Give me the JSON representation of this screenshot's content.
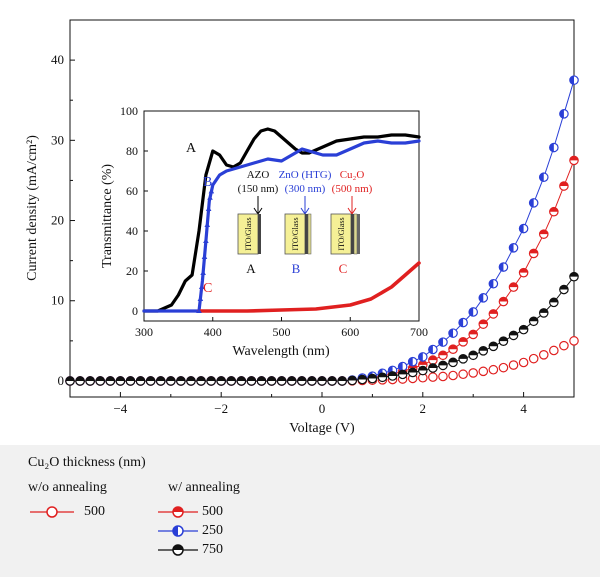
{
  "chart_data": [
    {
      "type": "scatter",
      "xlabel": "Voltage (V)",
      "ylabel": "Current density (mA/cm²)",
      "xlim": [
        -5,
        5
      ],
      "ylim": [
        -2,
        45
      ],
      "xticks": [
        "−4",
        "−2",
        "0",
        "2",
        "4"
      ],
      "yticks": [
        "0",
        "10",
        "20",
        "30",
        "40"
      ],
      "series": [
        {
          "name": "500",
          "group": "w/o annealing",
          "marker": "open-circle",
          "color": "#e02020",
          "x": [
            0.5,
            1.0,
            1.5,
            2.0,
            2.5,
            3.0,
            3.5,
            4.0,
            4.5,
            5.0
          ],
          "y": [
            0.0,
            0.1,
            0.2,
            0.4,
            0.6,
            1.0,
            1.5,
            2.3,
            3.5,
            5.0
          ]
        },
        {
          "name": "500",
          "group": "w/ annealing",
          "marker": "half-filled-circle",
          "color": "#e02020",
          "x": [
            0.5,
            1.0,
            1.5,
            2.0,
            2.5,
            3.0,
            3.5,
            4.0,
            4.5,
            5.0
          ],
          "y": [
            0.0,
            0.4,
            1.0,
            2.0,
            3.5,
            5.8,
            9.0,
            13.5,
            19.5,
            27.5
          ]
        },
        {
          "name": "250",
          "group": "w/ annealing",
          "marker": "half-filled-circle",
          "color": "#2a3fd6",
          "x": [
            0.5,
            1.0,
            1.5,
            2.0,
            2.5,
            3.0,
            3.5,
            4.0,
            4.5,
            5.0
          ],
          "y": [
            0.0,
            0.6,
            1.5,
            3.0,
            5.3,
            8.6,
            13.0,
            19.0,
            27.0,
            37.5
          ]
        },
        {
          "name": "750",
          "group": "w/ annealing",
          "marker": "half-filled-circle",
          "color": "#111111",
          "x": [
            0.5,
            1.0,
            1.5,
            2.0,
            2.5,
            3.0,
            3.5,
            4.0,
            4.5,
            5.0
          ],
          "y": [
            0.0,
            0.3,
            0.7,
            1.3,
            2.1,
            3.2,
            4.6,
            6.4,
            9.0,
            13.0
          ]
        }
      ]
    },
    {
      "type": "line",
      "xlabel": "Wavelength (nm)",
      "ylabel": "Transmittance (%)",
      "xlim": [
        300,
        700
      ],
      "ylim": [
        -5,
        100
      ],
      "xticks": [
        "300",
        "400",
        "500",
        "600",
        "700"
      ],
      "yticks": [
        "0",
        "20",
        "40",
        "60",
        "80",
        "100"
      ],
      "series": [
        {
          "name": "A",
          "color": "#000000",
          "x": [
            300,
            320,
            340,
            350,
            360,
            370,
            380,
            390,
            400,
            410,
            420,
            430,
            440,
            450,
            460,
            470,
            480,
            490,
            500,
            510,
            520,
            530,
            540,
            560,
            580,
            600,
            620,
            640,
            660,
            680,
            700
          ],
          "y": [
            0,
            0,
            3,
            8,
            15,
            18,
            40,
            68,
            80,
            78,
            73,
            72,
            74,
            80,
            86,
            90,
            91,
            90,
            87,
            84,
            81,
            79,
            79,
            82,
            85,
            86,
            87,
            87,
            88,
            88,
            87
          ]
        },
        {
          "name": "B",
          "color": "#2a3fd6",
          "x": [
            300,
            370,
            375,
            380,
            385,
            390,
            395,
            400,
            410,
            420,
            440,
            460,
            480,
            500,
            520,
            530,
            540,
            560,
            580,
            600,
            620,
            640,
            660,
            680,
            700
          ],
          "y": [
            0,
            0,
            0,
            0,
            15,
            35,
            55,
            63,
            68,
            70,
            72,
            74,
            76,
            75,
            79,
            81,
            80,
            78,
            78,
            81,
            84,
            85,
            84,
            84,
            85
          ]
        },
        {
          "name": "C",
          "color": "#e02020",
          "x": [
            380,
            400,
            450,
            500,
            550,
            600,
            630,
            660,
            680,
            700
          ],
          "y": [
            0,
            0,
            0,
            0.5,
            1,
            3,
            6,
            12,
            18,
            24
          ]
        }
      ],
      "annotations": {
        "labels": [
          "A",
          "B",
          "C"
        ],
        "materials": [
          {
            "name": "AZO",
            "thickness": "(150 nm)",
            "color": "#000000"
          },
          {
            "name": "ZnO (HTG)",
            "thickness": "(300 nm)",
            "color": "#2a3fd6"
          },
          {
            "name": "Cu₂O",
            "thickness": "(500 nm)",
            "color": "#e02020"
          }
        ],
        "substrate": "ITO/Glass"
      }
    }
  ],
  "legend": {
    "title": "Cu₂O thickness (nm)",
    "group_without": "w/o annealing",
    "group_with": "w/ annealing",
    "without_items": [
      {
        "label": "500",
        "color": "#e02020"
      }
    ],
    "with_items": [
      {
        "label": "500",
        "color": "#e02020"
      },
      {
        "label": "250",
        "color": "#2a3fd6"
      },
      {
        "label": "750",
        "color": "#111111"
      }
    ]
  }
}
